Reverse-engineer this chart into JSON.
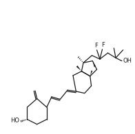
{
  "bg": "#ffffff",
  "lc": "#1a1a1a",
  "lw": 0.9,
  "fs": 6.0,
  "xlim": [
    -0.5,
    10.5
  ],
  "ylim": [
    -0.5,
    10.5
  ]
}
